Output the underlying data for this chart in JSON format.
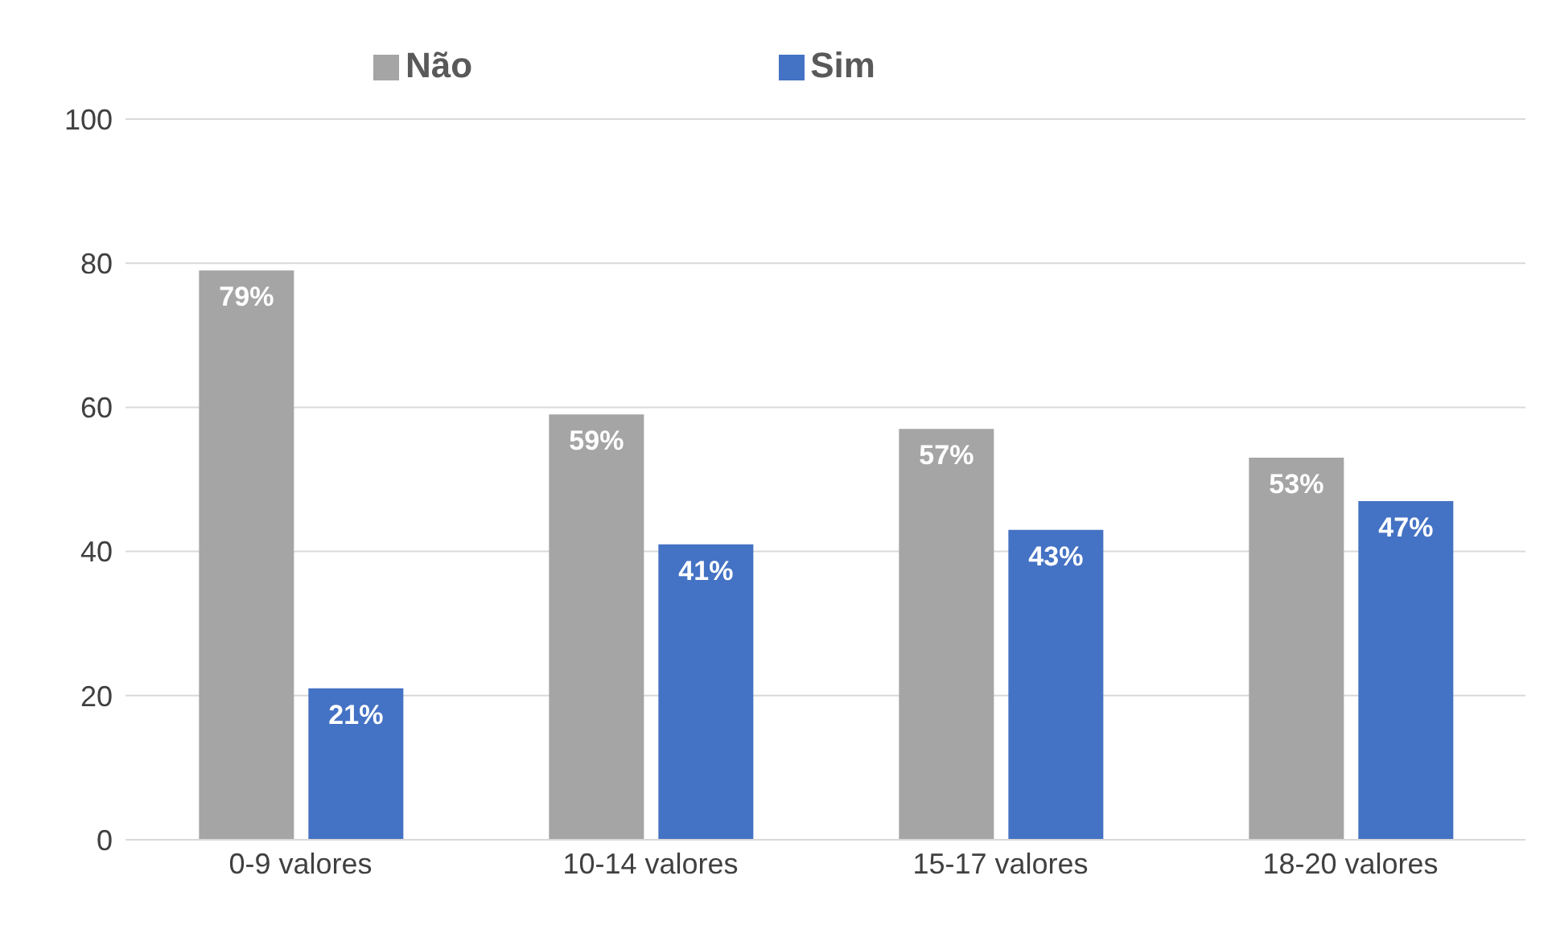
{
  "chart_data": {
    "type": "bar",
    "categories": [
      "0-9 valores",
      "10-14 valores",
      "15-17 valores",
      "18-20 valores"
    ],
    "series": [
      {
        "name": "Não",
        "color": "#a5a5a5",
        "values": [
          79,
          59,
          57,
          53
        ],
        "value_labels": [
          "79%",
          "59%",
          "57%",
          "53%"
        ]
      },
      {
        "name": "Sim",
        "color": "#4472c4",
        "values": [
          21,
          41,
          43,
          47
        ],
        "value_labels": [
          "21%",
          "41%",
          "43%",
          "47%"
        ]
      }
    ],
    "ylim": [
      0,
      100
    ],
    "yticks": [
      0,
      20,
      40,
      60,
      80,
      100
    ],
    "grid": "y",
    "legend": "top"
  }
}
